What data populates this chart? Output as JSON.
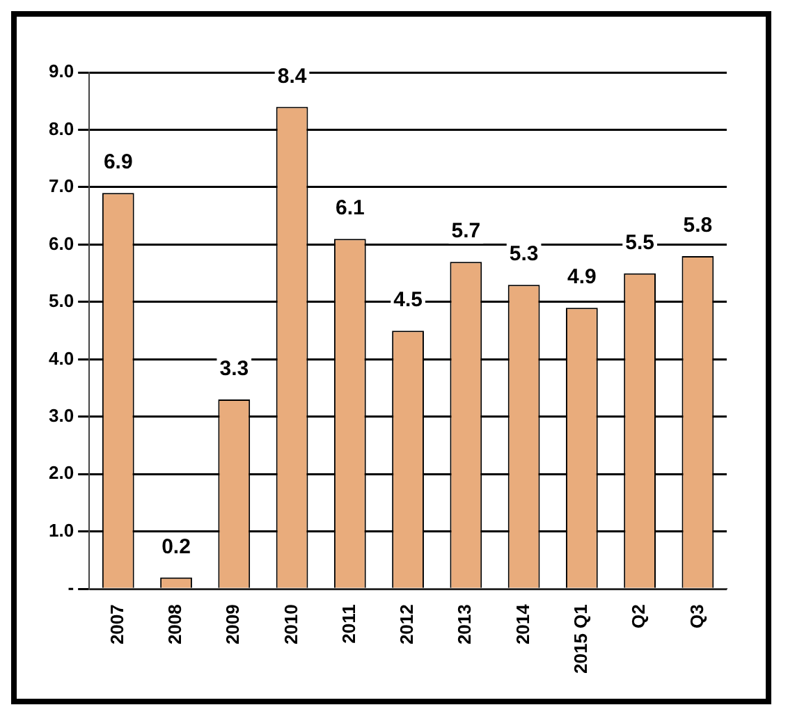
{
  "chart_data": {
    "type": "bar",
    "categories": [
      "2007",
      "2008",
      "2009",
      "2010",
      "2011",
      "2012",
      "2013",
      "2014",
      "2015 Q1",
      "Q2",
      "Q3"
    ],
    "values": [
      6.9,
      0.2,
      3.3,
      8.4,
      6.1,
      4.5,
      5.7,
      5.3,
      4.9,
      5.5,
      5.8
    ],
    "color": "#e9ac7c",
    "ylim": [
      0,
      9
    ],
    "yticks": [
      {
        "value": 0,
        "label": "-"
      },
      {
        "value": 1,
        "label": "1.0"
      },
      {
        "value": 2,
        "label": "2.0"
      },
      {
        "value": 3,
        "label": "3.0"
      },
      {
        "value": 4,
        "label": "4.0"
      },
      {
        "value": 5,
        "label": "5.0"
      },
      {
        "value": 6,
        "label": "6.0"
      },
      {
        "value": 7,
        "label": "7.0"
      },
      {
        "value": 8,
        "label": "8.0"
      },
      {
        "value": 9,
        "label": "9.0"
      }
    ],
    "grid": "y",
    "data_labels": true
  }
}
